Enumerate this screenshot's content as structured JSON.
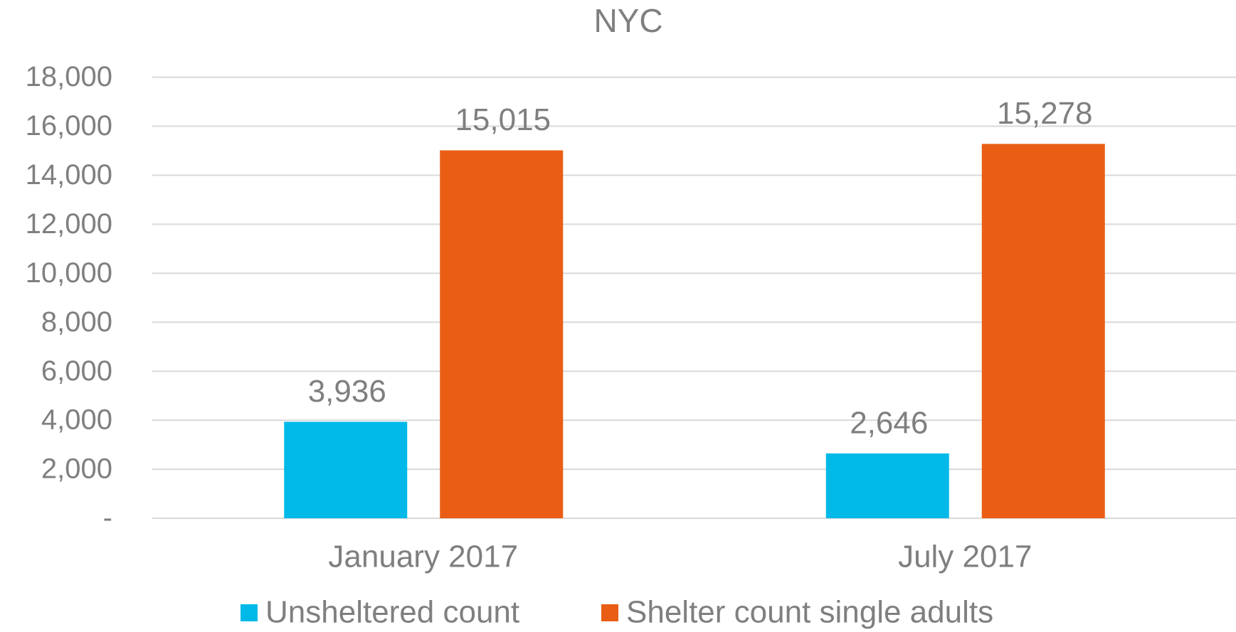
{
  "chart_data": {
    "type": "bar",
    "title": "NYC",
    "categories": [
      "January 2017",
      "July 2017"
    ],
    "series": [
      {
        "name": "Unsheltered count",
        "color": "#00b9e8",
        "values": [
          3936,
          2646
        ],
        "value_labels": [
          "3,936",
          "2,646"
        ]
      },
      {
        "name": "Shelter count single adults",
        "color": "#e95e14",
        "values": [
          15015,
          15278
        ],
        "value_labels": [
          "15,015",
          "15,278"
        ]
      }
    ],
    "ylim": [
      0,
      18000
    ],
    "yticks": [
      {
        "value": 0,
        "label": "-"
      },
      {
        "value": 2000,
        "label": "2,000"
      },
      {
        "value": 4000,
        "label": "4,000"
      },
      {
        "value": 6000,
        "label": "6,000"
      },
      {
        "value": 8000,
        "label": "8,000"
      },
      {
        "value": 10000,
        "label": "10,000"
      },
      {
        "value": 12000,
        "label": "12,000"
      },
      {
        "value": 14000,
        "label": "14,000"
      },
      {
        "value": 16000,
        "label": "16,000"
      },
      {
        "value": 18000,
        "label": "18,000"
      }
    ],
    "grid": true,
    "legend": "bottom"
  }
}
